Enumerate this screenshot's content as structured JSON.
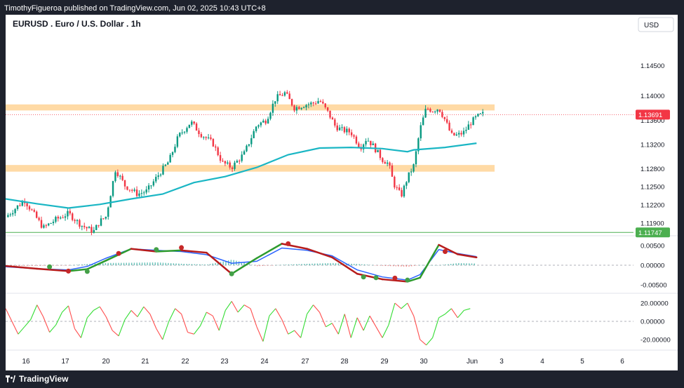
{
  "header": {
    "publish_text": "TimothyFigueroa published on TradingView.com, Jun 02, 2025 10:43 UTC+8"
  },
  "chart_title": "EURUSD . Euro / U.S. Dollar . 1h",
  "currency_button": "USD",
  "footer": {
    "brand": "TradingView"
  },
  "colors": {
    "up": "#089981",
    "down": "#f23645",
    "zone": "#ffd8a0",
    "ma": "#1ab6c4",
    "macd_fast": "#2962ff",
    "macd_signal_up": "#2e9b2e",
    "macd_signal_down": "#b71c1c",
    "osc_up": "#33dd33",
    "osc_down": "#ff4d4d"
  },
  "chart_data": [
    {
      "type": "candlestick",
      "title": "EURUSD . Euro / U.S. Dollar . 1h",
      "x_ticks": [
        "16",
        "17",
        "20",
        "21",
        "22",
        "23",
        "24",
        "27",
        "28",
        "29",
        "30",
        "Jun",
        "3",
        "4",
        "5",
        "6"
      ],
      "y_ticks": [
        "1.14500",
        "1.14000",
        "1.13600",
        "1.13200",
        "1.12800",
        "1.12500",
        "1.12200",
        "1.11900"
      ],
      "ylim": [
        1.1175,
        1.149
      ],
      "current_price_label": "1.13691",
      "reference_line_label": "1.11747",
      "resistance_zone": [
        1.1376,
        1.1386
      ],
      "support_zone": [
        1.1275,
        1.1286
      ],
      "price_path": [
        [
          0.0,
          1.12
        ],
        [
          0.03,
          1.1228
        ],
        [
          0.06,
          1.1182
        ],
        [
          0.08,
          1.1196
        ],
        [
          0.1,
          1.1206
        ],
        [
          0.12,
          1.1187
        ],
        [
          0.14,
          1.1176
        ],
        [
          0.15,
          1.1193
        ],
        [
          0.16,
          1.1201
        ],
        [
          0.175,
          1.1279
        ],
        [
          0.19,
          1.1252
        ],
        [
          0.21,
          1.1238
        ],
        [
          0.225,
          1.1243
        ],
        [
          0.245,
          1.1272
        ],
        [
          0.26,
          1.1292
        ],
        [
          0.275,
          1.1333
        ],
        [
          0.295,
          1.1357
        ],
        [
          0.31,
          1.1338
        ],
        [
          0.33,
          1.1322
        ],
        [
          0.345,
          1.129
        ],
        [
          0.36,
          1.1282
        ],
        [
          0.38,
          1.1305
        ],
        [
          0.4,
          1.1352
        ],
        [
          0.415,
          1.136
        ],
        [
          0.43,
          1.1396
        ],
        [
          0.445,
          1.1405
        ],
        [
          0.46,
          1.138
        ],
        [
          0.475,
          1.1385
        ],
        [
          0.49,
          1.1388
        ],
        [
          0.5,
          1.1393
        ],
        [
          0.515,
          1.137
        ],
        [
          0.525,
          1.135
        ],
        [
          0.535,
          1.1344
        ],
        [
          0.55,
          1.134
        ],
        [
          0.565,
          1.1315
        ],
        [
          0.575,
          1.133
        ],
        [
          0.585,
          1.1318
        ],
        [
          0.6,
          1.1295
        ],
        [
          0.61,
          1.1288
        ],
        [
          0.618,
          1.1255
        ],
        [
          0.63,
          1.1235
        ],
        [
          0.64,
          1.1265
        ],
        [
          0.65,
          1.1285
        ],
        [
          0.66,
          1.1345
        ],
        [
          0.67,
          1.138
        ],
        [
          0.68,
          1.1376
        ],
        [
          0.69,
          1.138
        ],
        [
          0.7,
          1.136
        ],
        [
          0.71,
          1.1335
        ],
        [
          0.72,
          1.1335
        ],
        [
          0.73,
          1.134
        ],
        [
          0.74,
          1.1355
        ],
        [
          0.75,
          1.1365
        ],
        [
          0.76,
          1.137
        ]
      ],
      "moving_average": [
        [
          0.0,
          1.123
        ],
        [
          0.05,
          1.1222
        ],
        [
          0.1,
          1.1215
        ],
        [
          0.15,
          1.1221
        ],
        [
          0.2,
          1.123
        ],
        [
          0.25,
          1.1238
        ],
        [
          0.3,
          1.1257
        ],
        [
          0.35,
          1.1267
        ],
        [
          0.4,
          1.1282
        ],
        [
          0.45,
          1.1303
        ],
        [
          0.5,
          1.1314
        ],
        [
          0.55,
          1.1315
        ],
        [
          0.6,
          1.1313
        ],
        [
          0.64,
          1.1308
        ],
        [
          0.65,
          1.1311
        ],
        [
          0.7,
          1.1315
        ],
        [
          0.75,
          1.1322
        ]
      ]
    },
    {
      "type": "line",
      "panel": "macd",
      "y_ticks": [
        "0.00500",
        "0.00000",
        "-0.00500"
      ],
      "ylim": [
        -0.007,
        0.007
      ],
      "fast_line": [
        [
          0.0,
          -0.0004
        ],
        [
          0.05,
          -0.0009
        ],
        [
          0.1,
          -0.0012
        ],
        [
          0.13,
          -0.0003
        ],
        [
          0.16,
          0.0018
        ],
        [
          0.2,
          0.0042
        ],
        [
          0.24,
          0.0038
        ],
        [
          0.28,
          0.0035
        ],
        [
          0.32,
          0.0027
        ],
        [
          0.36,
          0.0005
        ],
        [
          0.4,
          0.001
        ],
        [
          0.44,
          0.0044
        ],
        [
          0.48,
          0.0038
        ],
        [
          0.52,
          0.0024
        ],
        [
          0.56,
          -0.0012
        ],
        [
          0.6,
          -0.003
        ],
        [
          0.64,
          -0.0038
        ],
        [
          0.66,
          -0.0024
        ],
        [
          0.69,
          0.004
        ],
        [
          0.72,
          0.003
        ],
        [
          0.75,
          0.0022
        ]
      ],
      "signal_line": [
        [
          0.0,
          -0.0002
        ],
        [
          0.05,
          -0.0009
        ],
        [
          0.1,
          -0.0015
        ],
        [
          0.13,
          -0.001
        ],
        [
          0.16,
          0.0012
        ],
        [
          0.2,
          0.0042
        ],
        [
          0.24,
          0.0035
        ],
        [
          0.28,
          0.0038
        ],
        [
          0.32,
          0.0032
        ],
        [
          0.36,
          -0.0022
        ],
        [
          0.4,
          0.0018
        ],
        [
          0.44,
          0.0055
        ],
        [
          0.48,
          0.0042
        ],
        [
          0.52,
          0.002
        ],
        [
          0.56,
          -0.0022
        ],
        [
          0.6,
          -0.0036
        ],
        [
          0.64,
          -0.0042
        ],
        [
          0.66,
          -0.0032
        ],
        [
          0.69,
          0.0052
        ],
        [
          0.72,
          0.0028
        ],
        [
          0.75,
          0.002
        ]
      ],
      "cross_points": [
        [
          0.07,
          -0.0004,
          "up"
        ],
        [
          0.1,
          -0.0015,
          "down"
        ],
        [
          0.13,
          -0.0016,
          "up"
        ],
        [
          0.18,
          0.003,
          "down"
        ],
        [
          0.24,
          0.004,
          "up"
        ],
        [
          0.28,
          0.0045,
          "down"
        ],
        [
          0.36,
          -0.0022,
          "up"
        ],
        [
          0.45,
          0.0055,
          "down"
        ],
        [
          0.57,
          -0.003,
          "up"
        ],
        [
          0.59,
          -0.0032,
          "up"
        ],
        [
          0.62,
          -0.0033,
          "down"
        ],
        [
          0.64,
          -0.0038,
          "up"
        ],
        [
          0.7,
          0.0035,
          "down"
        ]
      ]
    },
    {
      "type": "line",
      "panel": "oscillator",
      "y_ticks": [
        "20.00000",
        "0.00000",
        "-20.00000"
      ],
      "ylim": [
        -30,
        30
      ],
      "values": [
        [
          0.0,
          14
        ],
        [
          0.01,
          0
        ],
        [
          0.02,
          -14
        ],
        [
          0.03,
          -6
        ],
        [
          0.04,
          2
        ],
        [
          0.05,
          18
        ],
        [
          0.06,
          5
        ],
        [
          0.07,
          -12
        ],
        [
          0.08,
          -4
        ],
        [
          0.09,
          10
        ],
        [
          0.1,
          17
        ],
        [
          0.11,
          -8
        ],
        [
          0.12,
          -18
        ],
        [
          0.13,
          4
        ],
        [
          0.14,
          12
        ],
        [
          0.15,
          16
        ],
        [
          0.16,
          5
        ],
        [
          0.17,
          -10
        ],
        [
          0.18,
          -16
        ],
        [
          0.19,
          2
        ],
        [
          0.2,
          12
        ],
        [
          0.21,
          5
        ],
        [
          0.22,
          16
        ],
        [
          0.23,
          8
        ],
        [
          0.24,
          -8
        ],
        [
          0.25,
          -20
        ],
        [
          0.26,
          0
        ],
        [
          0.27,
          14
        ],
        [
          0.28,
          8
        ],
        [
          0.29,
          -12
        ],
        [
          0.3,
          -14
        ],
        [
          0.31,
          -5
        ],
        [
          0.32,
          10
        ],
        [
          0.33,
          6
        ],
        [
          0.34,
          -10
        ],
        [
          0.35,
          12
        ],
        [
          0.36,
          22
        ],
        [
          0.37,
          10
        ],
        [
          0.38,
          18
        ],
        [
          0.39,
          14
        ],
        [
          0.4,
          -6
        ],
        [
          0.41,
          -22
        ],
        [
          0.42,
          6
        ],
        [
          0.43,
          14
        ],
        [
          0.44,
          2
        ],
        [
          0.45,
          -14
        ],
        [
          0.46,
          -10
        ],
        [
          0.47,
          -18
        ],
        [
          0.48,
          8
        ],
        [
          0.49,
          18
        ],
        [
          0.5,
          10
        ],
        [
          0.51,
          -6
        ],
        [
          0.52,
          -2
        ],
        [
          0.53,
          -14
        ],
        [
          0.54,
          8
        ],
        [
          0.55,
          -18
        ],
        [
          0.56,
          4
        ],
        [
          0.57,
          -10
        ],
        [
          0.58,
          6
        ],
        [
          0.59,
          -6
        ],
        [
          0.6,
          -18
        ],
        [
          0.61,
          -4
        ],
        [
          0.62,
          20
        ],
        [
          0.63,
          14
        ],
        [
          0.64,
          20
        ],
        [
          0.65,
          6
        ],
        [
          0.66,
          -20
        ],
        [
          0.67,
          -26
        ],
        [
          0.68,
          -18
        ],
        [
          0.69,
          4
        ],
        [
          0.7,
          8
        ],
        [
          0.71,
          14
        ],
        [
          0.72,
          4
        ],
        [
          0.73,
          12
        ],
        [
          0.74,
          14
        ]
      ]
    }
  ]
}
